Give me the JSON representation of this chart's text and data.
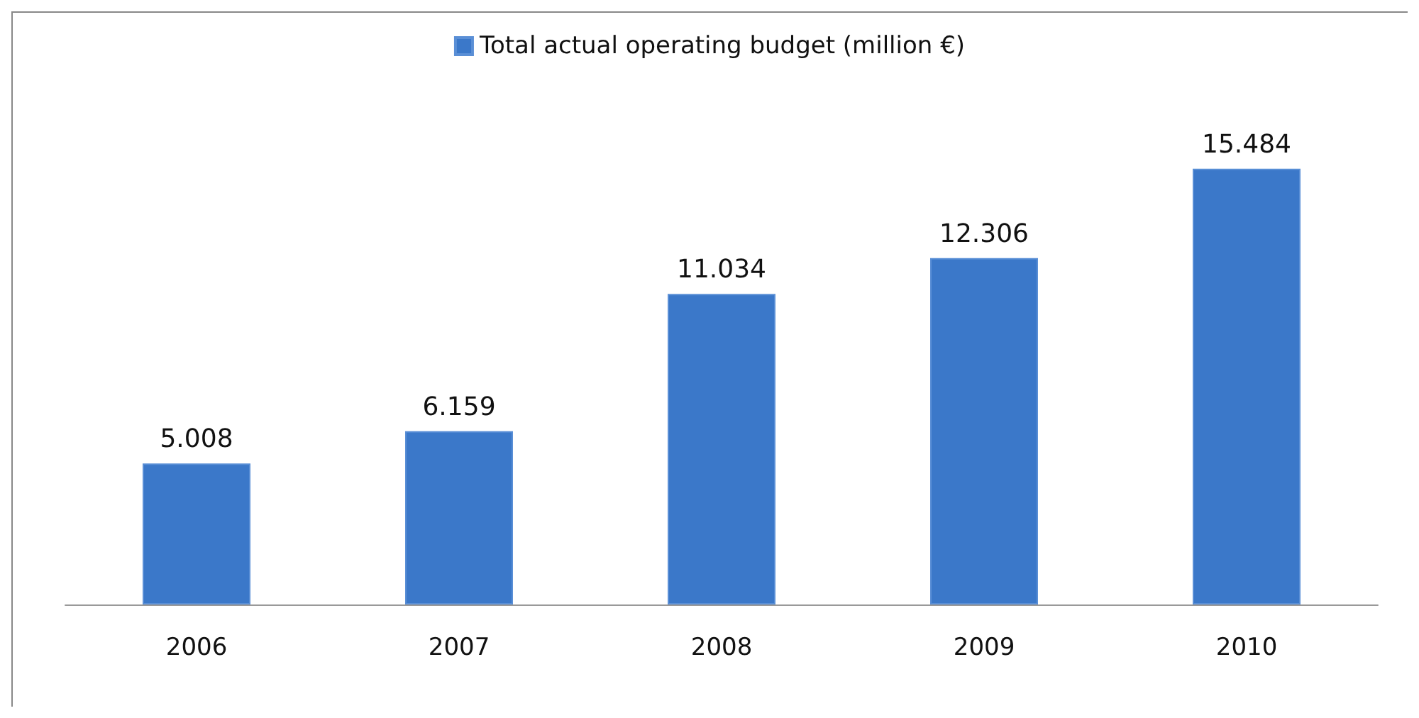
{
  "chart_data": {
    "type": "bar",
    "categories": [
      "2006",
      "2007",
      "2008",
      "2009",
      "2010"
    ],
    "series": [
      {
        "name": "Total actual operating budget (million €)",
        "color": "#3b78c9",
        "values": [
          5.008,
          6.159,
          11.034,
          12.306,
          15.484
        ]
      }
    ],
    "data_labels": true,
    "legend": "top"
  }
}
